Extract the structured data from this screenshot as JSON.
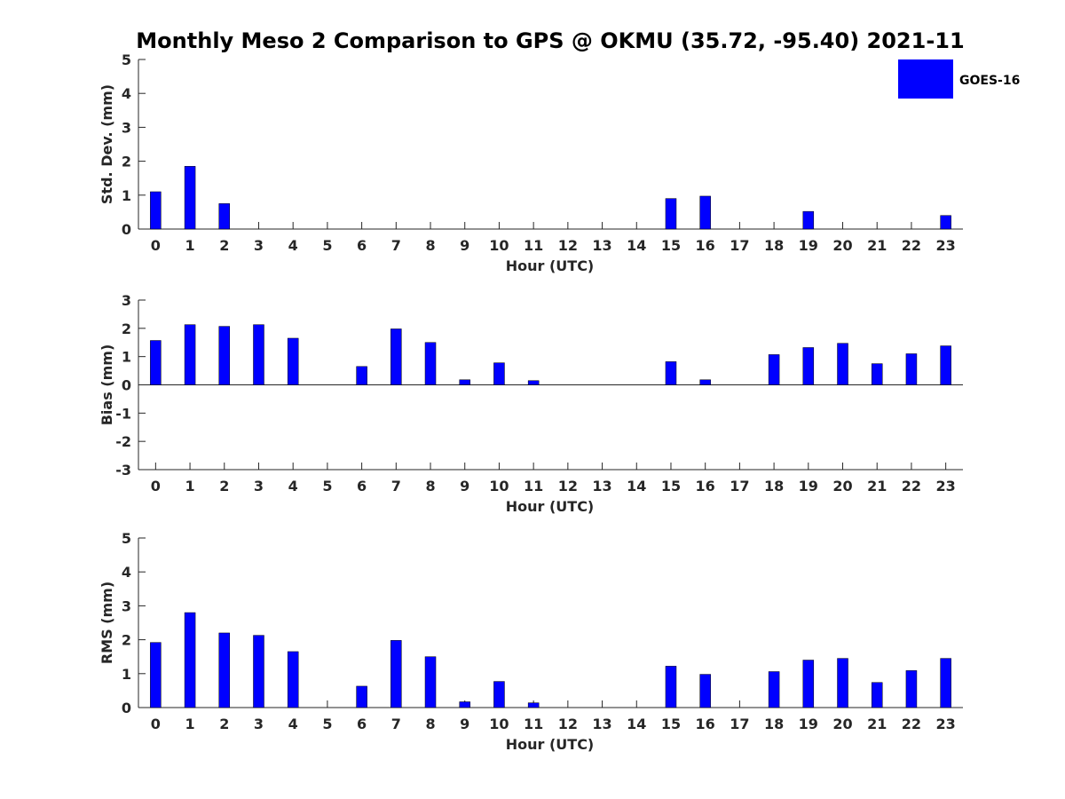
{
  "title": "Monthly Meso 2 Comparison to GPS @ OKMU (35.72, -95.40) 2021-11",
  "legend": {
    "label": "GOES-16",
    "color": "#0000ff",
    "placement": "top-right"
  },
  "chart_data": [
    {
      "type": "bar",
      "xlabel": "Hour (UTC)",
      "ylabel": "Std. Dev. (mm)",
      "ylim": [
        0,
        5
      ],
      "yticks": [
        0,
        1,
        2,
        3,
        4,
        5
      ],
      "categories": [
        "0",
        "1",
        "2",
        "3",
        "4",
        "5",
        "6",
        "7",
        "8",
        "9",
        "10",
        "11",
        "12",
        "13",
        "14",
        "15",
        "16",
        "17",
        "18",
        "19",
        "20",
        "21",
        "22",
        "23"
      ],
      "series": [
        {
          "name": "GOES-16",
          "color": "#0000ff",
          "values": [
            1.1,
            1.85,
            0.75,
            0,
            0,
            0,
            0,
            0,
            0,
            0,
            0,
            0,
            0,
            0,
            0,
            0.9,
            0.97,
            0,
            0,
            0.52,
            0,
            0,
            0,
            0.4
          ]
        }
      ]
    },
    {
      "type": "bar",
      "xlabel": "Hour (UTC)",
      "ylabel": "Bias (mm)",
      "ylim": [
        -3,
        3
      ],
      "yticks": [
        -3,
        -2,
        -1,
        0,
        1,
        2,
        3
      ],
      "categories": [
        "0",
        "1",
        "2",
        "3",
        "4",
        "5",
        "6",
        "7",
        "8",
        "9",
        "10",
        "11",
        "12",
        "13",
        "14",
        "15",
        "16",
        "17",
        "18",
        "19",
        "20",
        "21",
        "22",
        "23"
      ],
      "series": [
        {
          "name": "GOES-16",
          "color": "#0000ff",
          "values": [
            1.57,
            2.13,
            2.07,
            2.13,
            1.65,
            0,
            0.65,
            1.98,
            1.5,
            0.18,
            0.78,
            0.15,
            0,
            0,
            0,
            0.82,
            0.18,
            0,
            1.07,
            1.32,
            1.47,
            0.75,
            1.1,
            1.38
          ]
        }
      ]
    },
    {
      "type": "bar",
      "xlabel": "Hour (UTC)",
      "ylabel": "RMS (mm)",
      "ylim": [
        0,
        5
      ],
      "yticks": [
        0,
        1,
        2,
        3,
        4,
        5
      ],
      "categories": [
        "0",
        "1",
        "2",
        "3",
        "4",
        "5",
        "6",
        "7",
        "8",
        "9",
        "10",
        "11",
        "12",
        "13",
        "14",
        "15",
        "16",
        "17",
        "18",
        "19",
        "20",
        "21",
        "22",
        "23"
      ],
      "series": [
        {
          "name": "GOES-16",
          "color": "#0000ff",
          "values": [
            1.92,
            2.8,
            2.2,
            2.13,
            1.65,
            0,
            0.63,
            1.98,
            1.5,
            0.17,
            0.77,
            0.14,
            0,
            0,
            0,
            1.22,
            0.98,
            0,
            1.06,
            1.4,
            1.45,
            0.74,
            1.09,
            1.45
          ]
        }
      ]
    }
  ]
}
